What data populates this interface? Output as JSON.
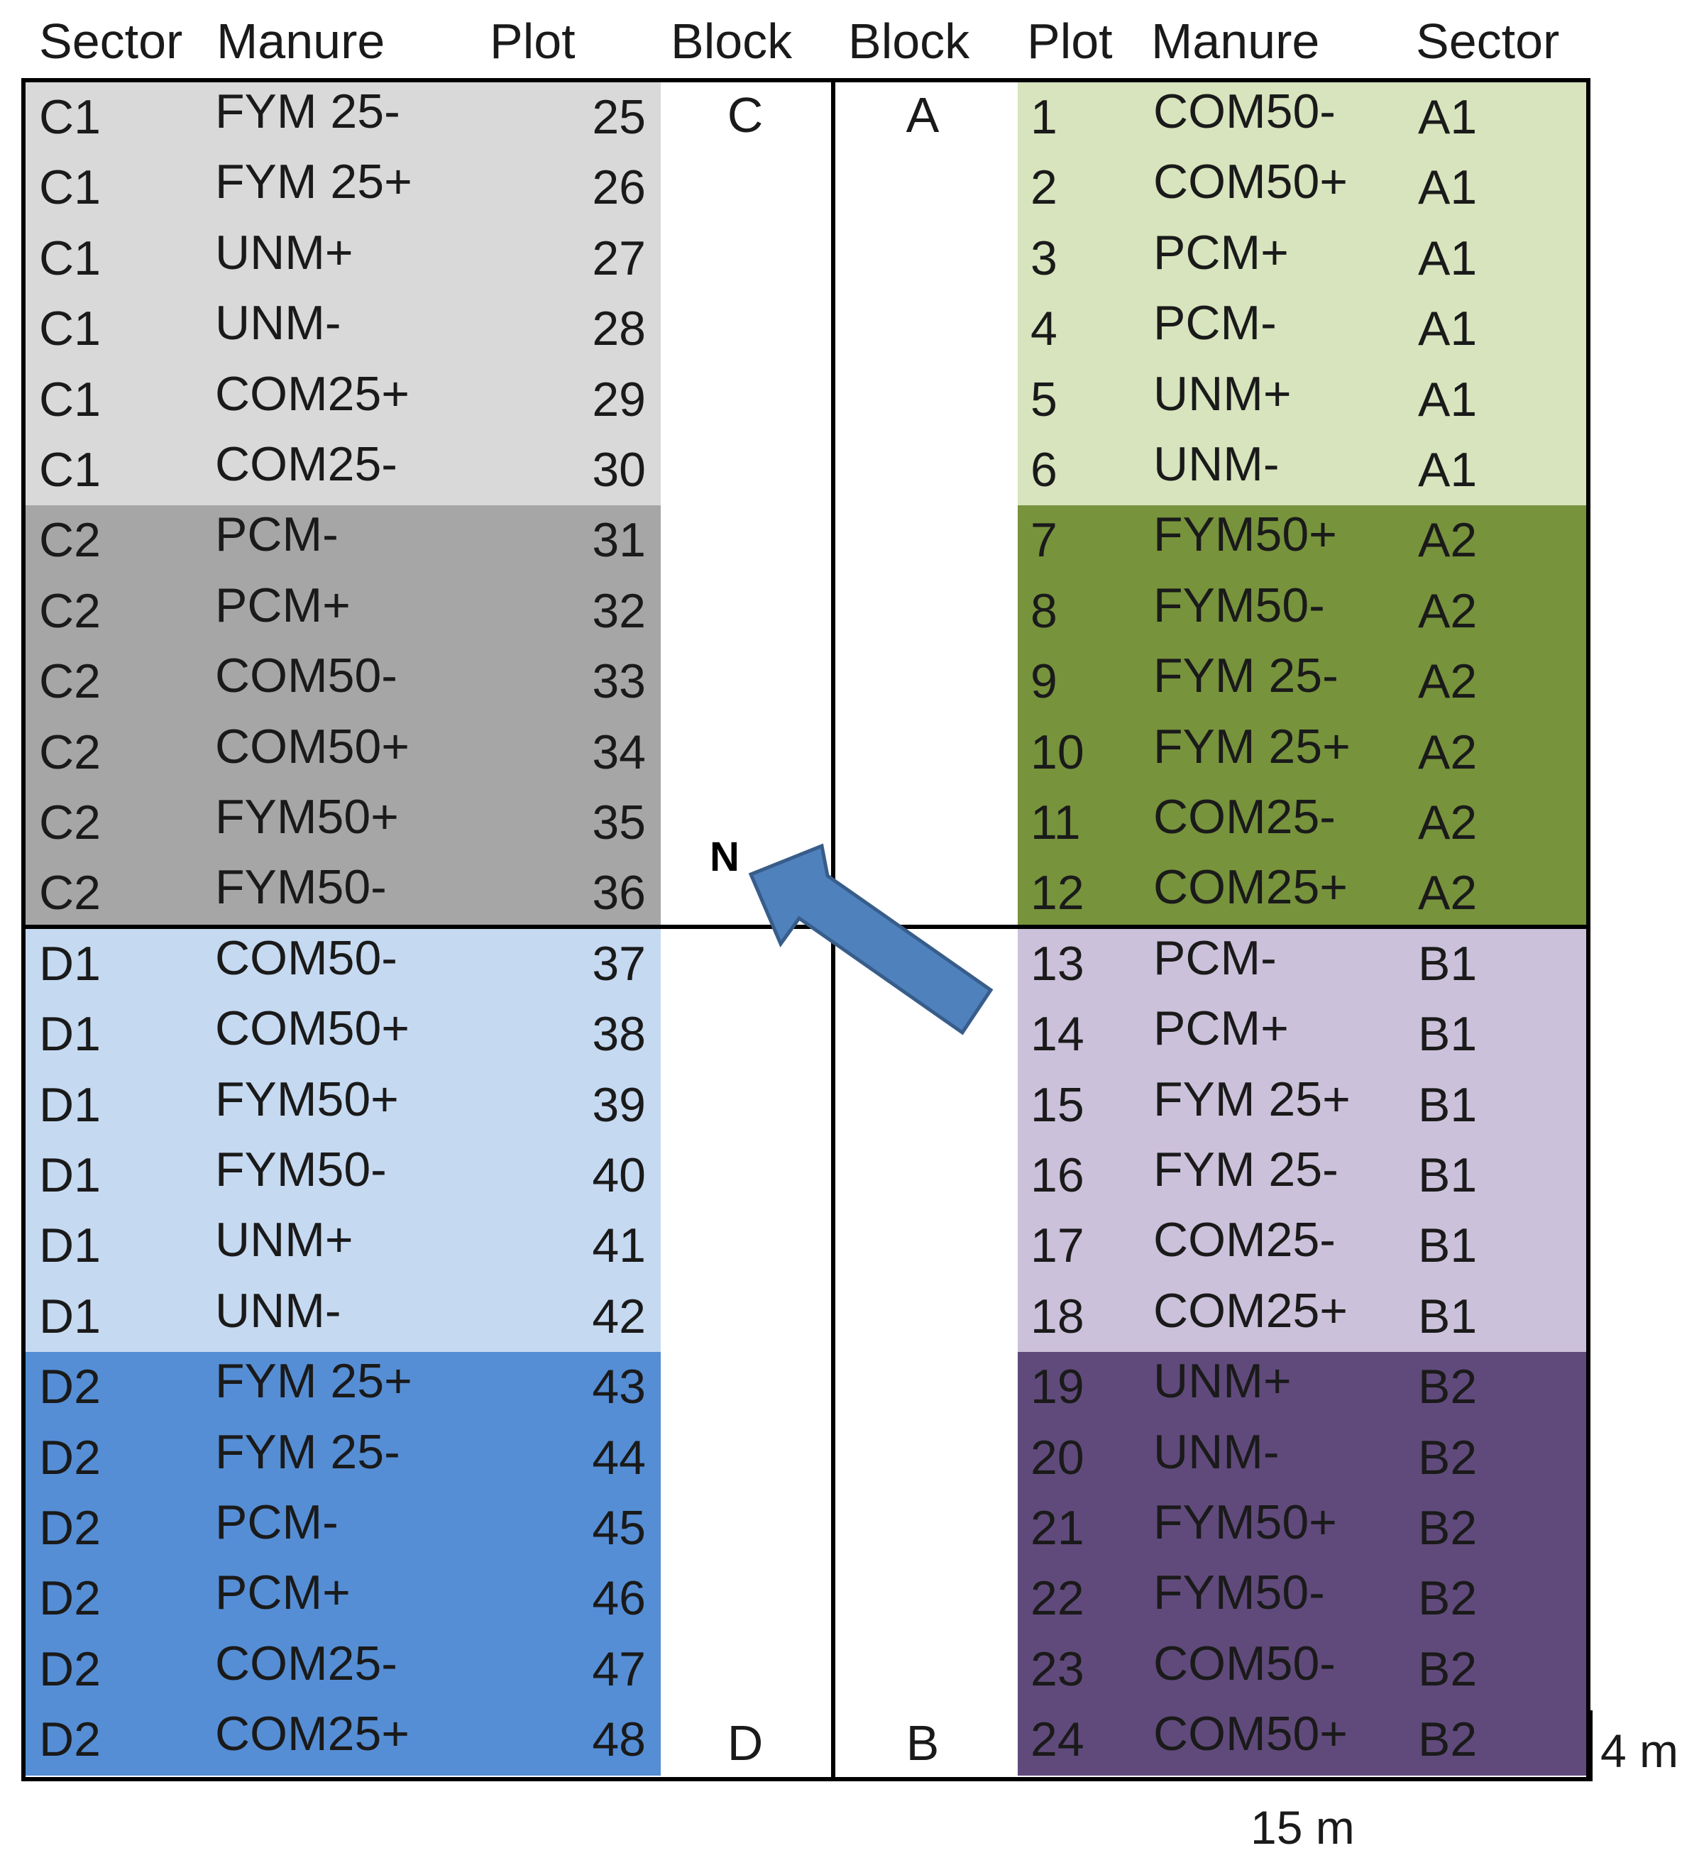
{
  "headers": {
    "left": [
      "Sector",
      "Manure",
      "Plot",
      "Block"
    ],
    "right": [
      "Block",
      "Plot",
      "Manure",
      "Sector"
    ]
  },
  "blocks": {
    "C": "C",
    "A": "A",
    "D": "D",
    "B": "B"
  },
  "north_label": "N",
  "dimensions": {
    "width": "15 m",
    "plot_height": "4 m"
  },
  "colors": {
    "C1": "#d9d9d9",
    "C2": "#a6a6a6",
    "D1": "#c5d9f1",
    "D2": "#558ed5",
    "A1": "#d7e4bd",
    "A2": "#77933c",
    "B1": "#ccc1da",
    "B2": "#604a7b",
    "arrow": "#4f81bd",
    "arrow_stroke": "#385d8a"
  },
  "left_column": [
    {
      "sector": "C1",
      "manure": "FYM 25-",
      "plot": "25"
    },
    {
      "sector": "C1",
      "manure": "FYM 25+",
      "plot": "26"
    },
    {
      "sector": "C1",
      "manure": "UNM+",
      "plot": "27"
    },
    {
      "sector": "C1",
      "manure": "UNM-",
      "plot": "28"
    },
    {
      "sector": "C1",
      "manure": "COM25+",
      "plot": "29"
    },
    {
      "sector": "C1",
      "manure": "COM25-",
      "plot": "30"
    },
    {
      "sector": "C2",
      "manure": "PCM-",
      "plot": "31"
    },
    {
      "sector": "C2",
      "manure": "PCM+",
      "plot": "32"
    },
    {
      "sector": "C2",
      "manure": "COM50-",
      "plot": "33"
    },
    {
      "sector": "C2",
      "manure": "COM50+",
      "plot": "34"
    },
    {
      "sector": "C2",
      "manure": "FYM50+",
      "plot": "35"
    },
    {
      "sector": "C2",
      "manure": "FYM50-",
      "plot": "36"
    },
    {
      "sector": "D1",
      "manure": "COM50-",
      "plot": "37"
    },
    {
      "sector": "D1",
      "manure": "COM50+",
      "plot": "38"
    },
    {
      "sector": "D1",
      "manure": "FYM50+",
      "plot": "39"
    },
    {
      "sector": "D1",
      "manure": "FYM50-",
      "plot": "40"
    },
    {
      "sector": "D1",
      "manure": "UNM+",
      "plot": "41"
    },
    {
      "sector": "D1",
      "manure": "UNM-",
      "plot": "42"
    },
    {
      "sector": "D2",
      "manure": "FYM 25+",
      "plot": "43"
    },
    {
      "sector": "D2",
      "manure": "FYM 25-",
      "plot": "44"
    },
    {
      "sector": "D2",
      "manure": "PCM-",
      "plot": "45"
    },
    {
      "sector": "D2",
      "manure": "PCM+",
      "plot": "46"
    },
    {
      "sector": "D2",
      "manure": "COM25-",
      "plot": "47"
    },
    {
      "sector": "D2",
      "manure": "COM25+",
      "plot": "48"
    }
  ],
  "right_column": [
    {
      "plot": "1",
      "manure": "COM50-",
      "sector": "A1"
    },
    {
      "plot": "2",
      "manure": "COM50+",
      "sector": "A1"
    },
    {
      "plot": "3",
      "manure": "PCM+",
      "sector": "A1"
    },
    {
      "plot": "4",
      "manure": "PCM-",
      "sector": "A1"
    },
    {
      "plot": "5",
      "manure": "UNM+",
      "sector": "A1"
    },
    {
      "plot": "6",
      "manure": "UNM-",
      "sector": "A1"
    },
    {
      "plot": "7",
      "manure": "FYM50+",
      "sector": "A2"
    },
    {
      "plot": "8",
      "manure": "FYM50-",
      "sector": "A2"
    },
    {
      "plot": "9",
      "manure": "FYM 25-",
      "sector": "A2"
    },
    {
      "plot": "10",
      "manure": "FYM 25+",
      "sector": "A2"
    },
    {
      "plot": "11",
      "manure": "COM25-",
      "sector": "A2"
    },
    {
      "plot": "12",
      "manure": "COM25+",
      "sector": "A2"
    },
    {
      "plot": "13",
      "manure": "PCM-",
      "sector": "B1"
    },
    {
      "plot": "14",
      "manure": "PCM+",
      "sector": "B1"
    },
    {
      "plot": "15",
      "manure": "FYM 25+",
      "sector": "B1"
    },
    {
      "plot": "16",
      "manure": "FYM 25-",
      "sector": "B1"
    },
    {
      "plot": "17",
      "manure": "COM25-",
      "sector": "B1"
    },
    {
      "plot": "18",
      "manure": "COM25+",
      "sector": "B1"
    },
    {
      "plot": "19",
      "manure": "UNM+",
      "sector": "B2"
    },
    {
      "plot": "20",
      "manure": "UNM-",
      "sector": "B2"
    },
    {
      "plot": "21",
      "manure": "FYM50+",
      "sector": "B2"
    },
    {
      "plot": "22",
      "manure": "FYM50-",
      "sector": "B2"
    },
    {
      "plot": "23",
      "manure": "COM50-",
      "sector": "B2"
    },
    {
      "plot": "24",
      "manure": "COM50+",
      "sector": "B2"
    }
  ]
}
